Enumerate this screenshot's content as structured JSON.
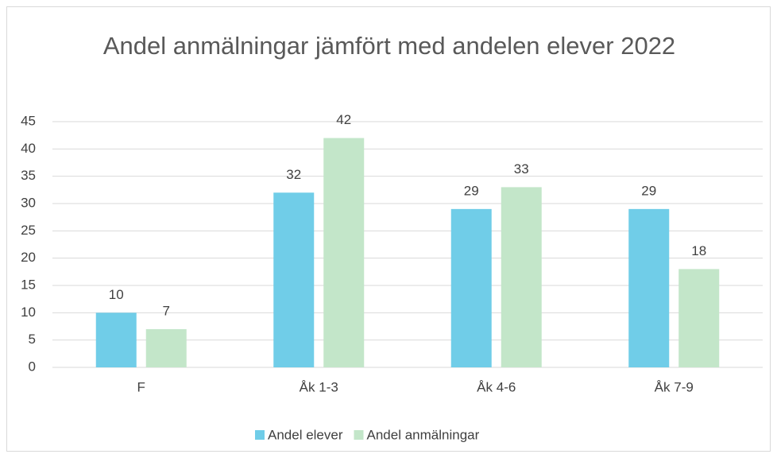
{
  "chart_data": {
    "type": "bar",
    "title": "Andel anmälningar jämfört med andelen elever 2022",
    "categories": [
      "F",
      "Åk 1-3",
      "Åk 4-6",
      "Åk 7-9"
    ],
    "series": [
      {
        "name": "Andel elever",
        "color": "#70cde8",
        "values": [
          10,
          32,
          29,
          29
        ]
      },
      {
        "name": "Andel anmälningar",
        "color": "#c3e6c9",
        "values": [
          7,
          42,
          33,
          18
        ]
      }
    ],
    "ylim": [
      0,
      45
    ],
    "yticks": [
      0,
      5,
      10,
      15,
      20,
      25,
      30,
      35,
      40,
      45
    ],
    "grid": true,
    "legend": "bottom"
  }
}
